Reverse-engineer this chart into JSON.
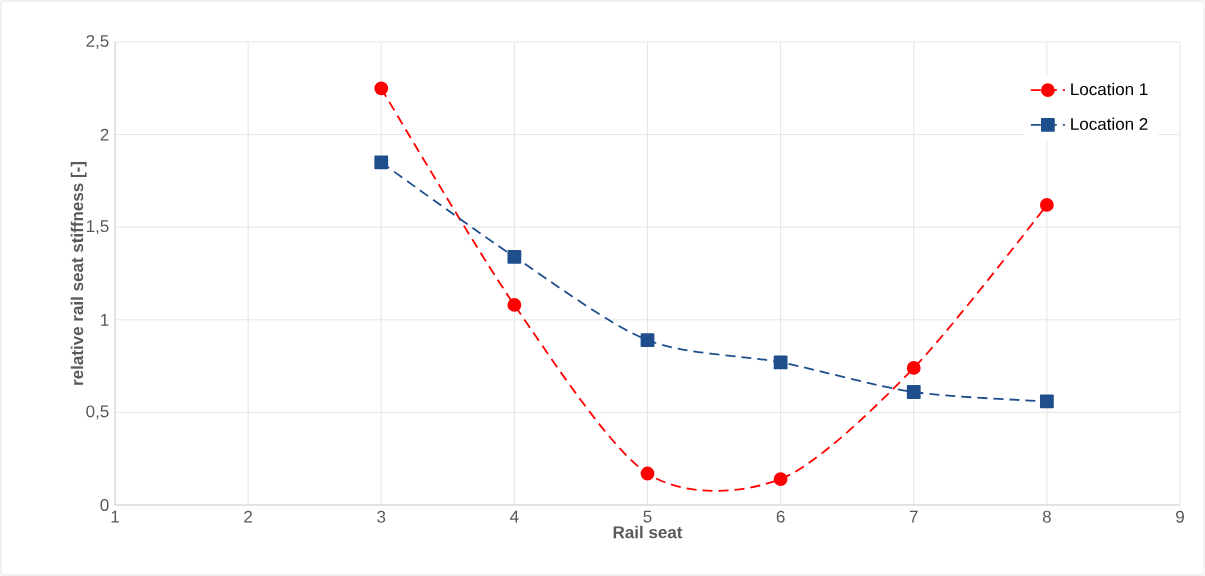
{
  "chart_data": {
    "type": "line",
    "xlabel": "Rail seat",
    "ylabel": "relative rail seat stiffness [-]",
    "x": [
      3,
      4,
      5,
      6,
      7,
      8
    ],
    "series": [
      {
        "name": "Location 1",
        "color": "#ff0000",
        "marker": "circle",
        "values": [
          2.25,
          1.08,
          0.17,
          0.14,
          0.74,
          1.62
        ]
      },
      {
        "name": "Location 2",
        "color": "#1f4e8c",
        "marker": "square",
        "values": [
          1.85,
          1.34,
          0.89,
          0.77,
          0.61,
          0.56
        ]
      }
    ],
    "xlim": [
      1,
      9
    ],
    "xticks": [
      1,
      2,
      3,
      4,
      5,
      6,
      7,
      8,
      9
    ],
    "ylim": [
      0,
      2.5
    ],
    "yticks": [
      0,
      {
        "value": 0.5,
        "label": "0,5"
      },
      1,
      {
        "value": 1.5,
        "label": "1,5"
      },
      2,
      {
        "value": 2.5,
        "label": "2,5"
      }
    ],
    "grid": true,
    "legend": "top right",
    "line_style": "dashed"
  }
}
